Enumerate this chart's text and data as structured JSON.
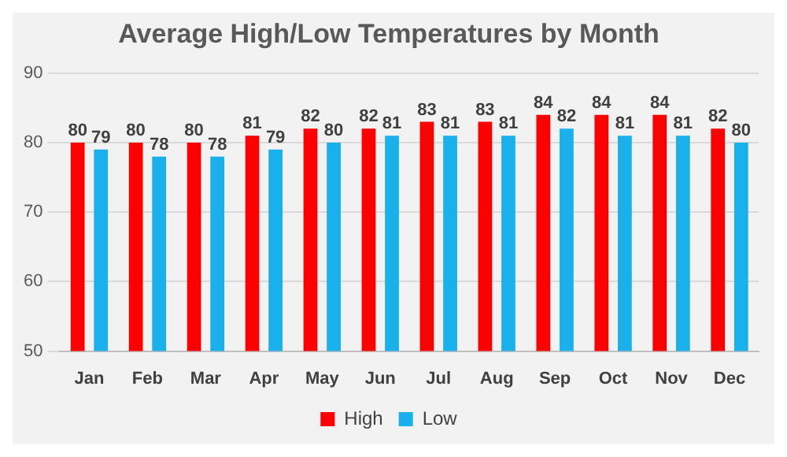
{
  "chart_data": {
    "type": "bar",
    "title": "Average High/Low Temperatures by Month",
    "categories": [
      "Jan",
      "Feb",
      "Mar",
      "Apr",
      "May",
      "Jun",
      "Jul",
      "Aug",
      "Sep",
      "Oct",
      "Nov",
      "Dec"
    ],
    "series": [
      {
        "name": "High",
        "color": "#ff0000",
        "values": [
          80,
          80,
          80,
          81,
          82,
          82,
          83,
          83,
          84,
          84,
          84,
          82
        ]
      },
      {
        "name": "Low",
        "color": "#1ab0ec",
        "values": [
          79,
          78,
          78,
          79,
          80,
          81,
          81,
          81,
          82,
          81,
          81,
          80
        ]
      }
    ],
    "ylim": [
      50,
      90
    ],
    "yticks": [
      50,
      60,
      70,
      80,
      90
    ],
    "grid": "y",
    "legend": "bottom",
    "data_labels": true
  }
}
